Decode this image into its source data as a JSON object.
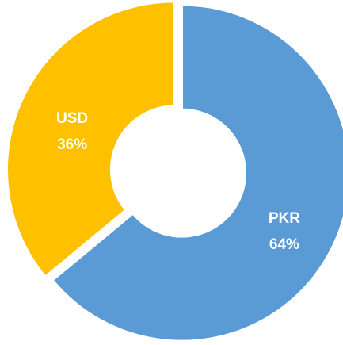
{
  "chart_data": {
    "type": "pie",
    "categories": [
      "PKR",
      "USD"
    ],
    "values": [
      64,
      36
    ],
    "value_labels": [
      "64%",
      "36%"
    ],
    "colors": [
      "#5b9bd5",
      "#ffc000"
    ]
  }
}
